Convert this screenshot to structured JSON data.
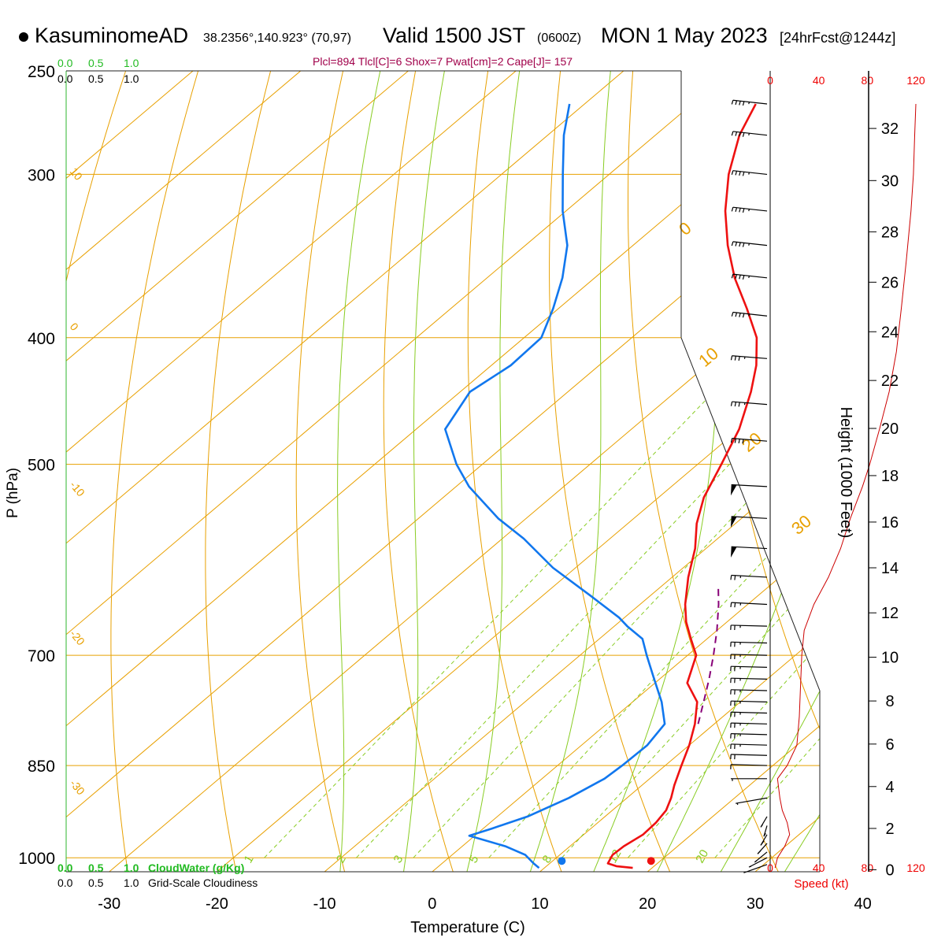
{
  "header": {
    "station": "KasuminomeAD",
    "coords": "38.2356°,140.923° (70,97)",
    "valid": "Valid 1500 JST",
    "zulu": "(0600Z)",
    "date": "MON 1 May 2023",
    "forecast": "[24hrFcst@1244z]",
    "indices": "Plcl=894 Tlcl[C]=6 Shox=7 Pwat[cm]=2 Cape[J]= 157"
  },
  "colors": {
    "temperature": "#ee1111",
    "dewpoint": "#1177ee",
    "parcel": "#880077",
    "isotherm": "#e8a000",
    "dry_adiabat": "#e8a000",
    "moist_adiabat": "#88cc22",
    "mixing_ratio": "#88cc22",
    "height_scale": "#cc0000"
  },
  "chart_data": {
    "type": "skew-t",
    "xlabel": "Temperature (C)",
    "ylabel": "P (hPa)",
    "x_ticks": [
      -30,
      -20,
      -10,
      0,
      10,
      20,
      30,
      40
    ],
    "y_ticks": [
      250,
      300,
      400,
      500,
      700,
      850,
      1000
    ],
    "pressure_range": [
      1025,
      250
    ],
    "temp_range_at_bottom": [
      -34,
      36
    ],
    "scale_top_left": [
      "0.0",
      "0.5",
      "1.0"
    ],
    "scale_top_left_black": [
      "0.0",
      "0.5",
      "1.0"
    ],
    "scale_bottom_cloud_water": [
      "0.0",
      "0.5",
      "1.0"
    ],
    "scale_bottom_cloudiness": [
      "0.0",
      "0.5",
      "1.0"
    ],
    "cloud_water_label": "CloudWater (g/Kg)",
    "cloudiness_label": "Grid-Scale Cloudiness",
    "isotherm_labels": [
      "10",
      "0",
      "-10",
      "-20",
      "-30"
    ],
    "dry_adiabat_labels": [
      "0",
      "10",
      "20",
      "30"
    ],
    "mixing_ratio_labels": [
      "1",
      "2",
      "3",
      "5",
      "8",
      "12",
      "20"
    ],
    "temperature": [
      {
        "p": 1018,
        "t": 18.2
      },
      {
        "p": 1015,
        "t": 16.5
      },
      {
        "p": 1010,
        "t": 15.4
      },
      {
        "p": 995,
        "t": 14.9
      },
      {
        "p": 980,
        "t": 15.0
      },
      {
        "p": 960,
        "t": 15.5
      },
      {
        "p": 940,
        "t": 15.4
      },
      {
        "p": 920,
        "t": 15.0
      },
      {
        "p": 900,
        "t": 14.1
      },
      {
        "p": 880,
        "t": 13.0
      },
      {
        "p": 850,
        "t": 11.5
      },
      {
        "p": 820,
        "t": 10.0
      },
      {
        "p": 790,
        "t": 8.2
      },
      {
        "p": 760,
        "t": 6.0
      },
      {
        "p": 735,
        "t": 3.0
      },
      {
        "p": 700,
        "t": 0.8
      },
      {
        "p": 680,
        "t": -1.5
      },
      {
        "p": 660,
        "t": -3.8
      },
      {
        "p": 640,
        "t": -5.8
      },
      {
        "p": 610,
        "t": -8.5
      },
      {
        "p": 580,
        "t": -11.0
      },
      {
        "p": 555,
        "t": -13.6
      },
      {
        "p": 530,
        "t": -15.8
      },
      {
        "p": 500,
        "t": -17.8
      },
      {
        "p": 470,
        "t": -20.0
      },
      {
        "p": 440,
        "t": -23.0
      },
      {
        "p": 420,
        "t": -25.4
      },
      {
        "p": 400,
        "t": -28.4
      },
      {
        "p": 380,
        "t": -32.5
      },
      {
        "p": 360,
        "t": -37.0
      },
      {
        "p": 340,
        "t": -41.2
      },
      {
        "p": 320,
        "t": -45.2
      },
      {
        "p": 300,
        "t": -48.9
      },
      {
        "p": 280,
        "t": -52.2
      },
      {
        "p": 265,
        "t": -54.1
      }
    ],
    "dewpoint": [
      {
        "p": 1018,
        "t": 9.5
      },
      {
        "p": 1010,
        "t": 8.5
      },
      {
        "p": 995,
        "t": 6.8
      },
      {
        "p": 980,
        "t": 4.0
      },
      {
        "p": 962,
        "t": -0.5
      },
      {
        "p": 950,
        "t": 0.8
      },
      {
        "p": 930,
        "t": 2.8
      },
      {
        "p": 900,
        "t": 4.6
      },
      {
        "p": 870,
        "t": 5.8
      },
      {
        "p": 850,
        "t": 6.0
      },
      {
        "p": 820,
        "t": 6.1
      },
      {
        "p": 790,
        "t": 5.4
      },
      {
        "p": 760,
        "t": 2.7
      },
      {
        "p": 730,
        "t": -0.5
      },
      {
        "p": 700,
        "t": -3.8
      },
      {
        "p": 680,
        "t": -6.0
      },
      {
        "p": 665,
        "t": -8.8
      },
      {
        "p": 655,
        "t": -10.5
      },
      {
        "p": 630,
        "t": -15.6
      },
      {
        "p": 600,
        "t": -22.1
      },
      {
        "p": 570,
        "t": -28.0
      },
      {
        "p": 550,
        "t": -32.6
      },
      {
        "p": 520,
        "t": -38.8
      },
      {
        "p": 500,
        "t": -42.4
      },
      {
        "p": 470,
        "t": -47.3
      },
      {
        "p": 440,
        "t": -49.1
      },
      {
        "p": 420,
        "t": -48.2
      },
      {
        "p": 400,
        "t": -48.4
      },
      {
        "p": 380,
        "t": -50.5
      },
      {
        "p": 360,
        "t": -53.0
      },
      {
        "p": 340,
        "t": -56.1
      },
      {
        "p": 320,
        "t": -60.3
      },
      {
        "p": 300,
        "t": -64.3
      },
      {
        "p": 280,
        "t": -68.5
      },
      {
        "p": 265,
        "t": -71.4
      }
    ],
    "parcel": [
      {
        "p": 790,
        "t": 8.5
      },
      {
        "p": 760,
        "t": 6.6
      },
      {
        "p": 730,
        "t": 4.6
      },
      {
        "p": 700,
        "t": 2.4
      },
      {
        "p": 670,
        "t": 0.0
      },
      {
        "p": 640,
        "t": -2.7
      },
      {
        "p": 620,
        "t": -4.7
      }
    ],
    "surface_temperature": 18.5,
    "surface_dewpoint": 10.5,
    "wind": {
      "label": "Speed (kt)",
      "ticks": [
        "0",
        "40",
        "80",
        "120"
      ],
      "barbs": [
        {
          "p": 1012,
          "dir": 320,
          "spd": 4
        },
        {
          "p": 1000,
          "dir": 330,
          "spd": 6
        },
        {
          "p": 990,
          "dir": 340,
          "spd": 8
        },
        {
          "p": 975,
          "dir": 345,
          "spd": 10
        },
        {
          "p": 960,
          "dir": 350,
          "spd": 10
        },
        {
          "p": 945,
          "dir": 355,
          "spd": 8
        },
        {
          "p": 930,
          "dir": 350,
          "spd": 6
        },
        {
          "p": 900,
          "dir": 300,
          "spd": 5
        },
        {
          "p": 870,
          "dir": 270,
          "spd": 8
        },
        {
          "p": 850,
          "dir": 265,
          "spd": 14
        },
        {
          "p": 835,
          "dir": 265,
          "spd": 20
        },
        {
          "p": 820,
          "dir": 265,
          "spd": 25
        },
        {
          "p": 805,
          "dir": 265,
          "spd": 25
        },
        {
          "p": 790,
          "dir": 265,
          "spd": 25
        },
        {
          "p": 775,
          "dir": 265,
          "spd": 25
        },
        {
          "p": 760,
          "dir": 265,
          "spd": 25
        },
        {
          "p": 745,
          "dir": 265,
          "spd": 25
        },
        {
          "p": 730,
          "dir": 265,
          "spd": 25
        },
        {
          "p": 715,
          "dir": 265,
          "spd": 25
        },
        {
          "p": 700,
          "dir": 265,
          "spd": 25
        },
        {
          "p": 685,
          "dir": 265,
          "spd": 25
        },
        {
          "p": 665,
          "dir": 265,
          "spd": 25
        },
        {
          "p": 640,
          "dir": 260,
          "spd": 25
        },
        {
          "p": 610,
          "dir": 260,
          "spd": 25
        },
        {
          "p": 580,
          "dir": 260,
          "spd": 50
        },
        {
          "p": 550,
          "dir": 260,
          "spd": 50
        },
        {
          "p": 520,
          "dir": 260,
          "spd": 50
        },
        {
          "p": 480,
          "dir": 255,
          "spd": 40
        },
        {
          "p": 450,
          "dir": 255,
          "spd": 35
        },
        {
          "p": 415,
          "dir": 255,
          "spd": 35
        },
        {
          "p": 385,
          "dir": 250,
          "spd": 45
        },
        {
          "p": 360,
          "dir": 250,
          "spd": 45
        },
        {
          "p": 340,
          "dir": 250,
          "spd": 45
        },
        {
          "p": 320,
          "dir": 250,
          "spd": 45
        },
        {
          "p": 300,
          "dir": 250,
          "spd": 45
        },
        {
          "p": 280,
          "dir": 250,
          "spd": 45
        },
        {
          "p": 265,
          "dir": 250,
          "spd": 45
        }
      ],
      "speed_profile": [
        {
          "p": 1018,
          "s": 4
        },
        {
          "p": 1000,
          "s": 6
        },
        {
          "p": 980,
          "s": 12
        },
        {
          "p": 960,
          "s": 16
        },
        {
          "p": 940,
          "s": 14
        },
        {
          "p": 920,
          "s": 10
        },
        {
          "p": 900,
          "s": 8
        },
        {
          "p": 870,
          "s": 6
        },
        {
          "p": 850,
          "s": 14
        },
        {
          "p": 820,
          "s": 22
        },
        {
          "p": 780,
          "s": 24
        },
        {
          "p": 740,
          "s": 25
        },
        {
          "p": 700,
          "s": 26
        },
        {
          "p": 670,
          "s": 28
        },
        {
          "p": 640,
          "s": 36
        },
        {
          "p": 610,
          "s": 48
        },
        {
          "p": 580,
          "s": 58
        },
        {
          "p": 550,
          "s": 66
        },
        {
          "p": 520,
          "s": 76
        },
        {
          "p": 500,
          "s": 82
        },
        {
          "p": 470,
          "s": 90
        },
        {
          "p": 440,
          "s": 98
        },
        {
          "p": 410,
          "s": 104
        },
        {
          "p": 380,
          "s": 108
        },
        {
          "p": 350,
          "s": 112
        },
        {
          "p": 320,
          "s": 116
        },
        {
          "p": 300,
          "s": 118
        },
        {
          "p": 280,
          "s": 119
        },
        {
          "p": 265,
          "s": 120
        }
      ]
    },
    "height": {
      "label": "Height (1000 Feet)",
      "ticks": [
        "0",
        "2",
        "4",
        "6",
        "8",
        "10",
        "12",
        "14",
        "16",
        "18",
        "20",
        "22",
        "24",
        "26",
        "28",
        "30",
        "32"
      ]
    }
  }
}
